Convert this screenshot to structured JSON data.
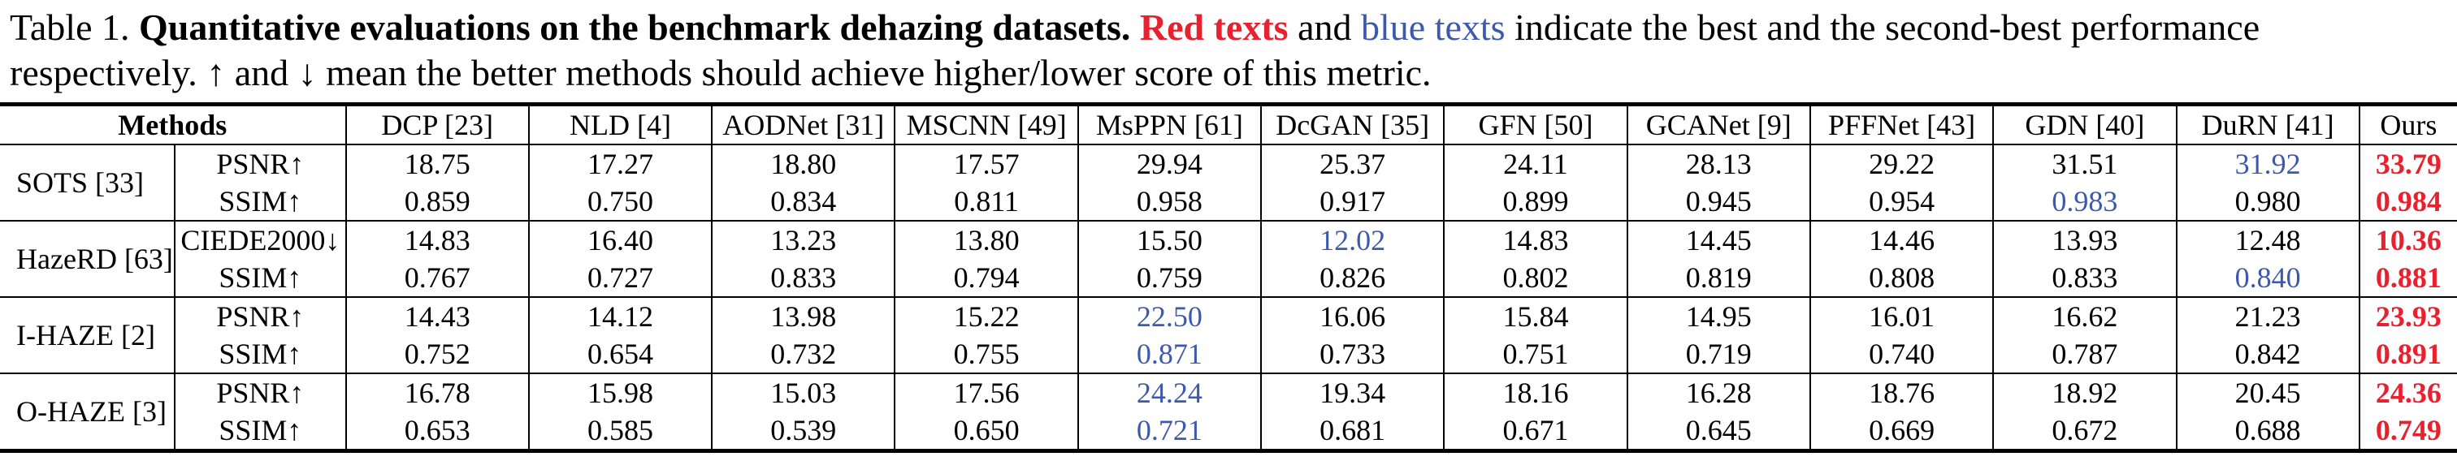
{
  "colors": {
    "best": "#e8212e",
    "second": "#3d59ab"
  },
  "caption": {
    "segments": [
      {
        "text": "Table 1.  ",
        "style": "normal"
      },
      {
        "text": "Quantitative evaluations on the benchmark dehazing datasets. ",
        "style": "bold"
      },
      {
        "text": "Red texts",
        "style": "bold-red"
      },
      {
        "text": " and ",
        "style": "normal"
      },
      {
        "text": "blue texts",
        "style": "blue"
      },
      {
        "text": " indicate the best and the second-best performance respectively. ↑ and ↓ mean the better methods should achieve higher/lower score of this metric.",
        "style": "normal"
      }
    ]
  },
  "table": {
    "corner_label": "Methods",
    "columns": [
      "DCP [23]",
      "NLD [4]",
      "AODNet [31]",
      "MSCNN [49]",
      "MsPPN [61]",
      "DcGAN [35]",
      "GFN [50]",
      "GCANet [9]",
      "PFFNet [43]",
      "GDN [40]",
      "DuRN [41]",
      "Ours"
    ],
    "groups": [
      {
        "dataset": "SOTS [33]",
        "rows": [
          {
            "metric": "PSNR↑",
            "values": [
              "18.75",
              "17.27",
              "18.80",
              "17.57",
              "29.94",
              "25.37",
              "24.11",
              "28.13",
              "29.22",
              "31.51",
              "31.92",
              "33.79"
            ],
            "styles": [
              "",
              "",
              "",
              "",
              "",
              "",
              "",
              "",
              "",
              "",
              "second",
              "best"
            ]
          },
          {
            "metric": "SSIM↑",
            "values": [
              "0.859",
              "0.750",
              "0.834",
              "0.811",
              "0.958",
              "0.917",
              "0.899",
              "0.945",
              "0.954",
              "0.983",
              "0.980",
              "0.984"
            ],
            "styles": [
              "",
              "",
              "",
              "",
              "",
              "",
              "",
              "",
              "",
              "second",
              "",
              "best"
            ]
          }
        ]
      },
      {
        "dataset": "HazeRD [63]",
        "rows": [
          {
            "metric": "CIEDE2000↓",
            "values": [
              "14.83",
              "16.40",
              "13.23",
              "13.80",
              "15.50",
              "12.02",
              "14.83",
              "14.45",
              "14.46",
              "13.93",
              "12.48",
              "10.36"
            ],
            "styles": [
              "",
              "",
              "",
              "",
              "",
              "second",
              "",
              "",
              "",
              "",
              "",
              "best"
            ]
          },
          {
            "metric": "SSIM↑",
            "values": [
              "0.767",
              "0.727",
              "0.833",
              "0.794",
              "0.759",
              "0.826",
              "0.802",
              "0.819",
              "0.808",
              "0.833",
              "0.840",
              "0.881"
            ],
            "styles": [
              "",
              "",
              "",
              "",
              "",
              "",
              "",
              "",
              "",
              "",
              "second",
              "best"
            ]
          }
        ]
      },
      {
        "dataset": "I-HAZE [2]",
        "rows": [
          {
            "metric": "PSNR↑",
            "values": [
              "14.43",
              "14.12",
              "13.98",
              "15.22",
              "22.50",
              "16.06",
              "15.84",
              "14.95",
              "16.01",
              "16.62",
              "21.23",
              "23.93"
            ],
            "styles": [
              "",
              "",
              "",
              "",
              "second",
              "",
              "",
              "",
              "",
              "",
              "",
              "best"
            ]
          },
          {
            "metric": "SSIM↑",
            "values": [
              "0.752",
              "0.654",
              "0.732",
              "0.755",
              "0.871",
              "0.733",
              "0.751",
              "0.719",
              "0.740",
              "0.787",
              "0.842",
              "0.891"
            ],
            "styles": [
              "",
              "",
              "",
              "",
              "second",
              "",
              "",
              "",
              "",
              "",
              "",
              "best"
            ]
          }
        ]
      },
      {
        "dataset": "O-HAZE [3]",
        "rows": [
          {
            "metric": "PSNR↑",
            "values": [
              "16.78",
              "15.98",
              "15.03",
              "17.56",
              "24.24",
              "19.34",
              "18.16",
              "16.28",
              "18.76",
              "18.92",
              "20.45",
              "24.36"
            ],
            "styles": [
              "",
              "",
              "",
              "",
              "second",
              "",
              "",
              "",
              "",
              "",
              "",
              "best"
            ]
          },
          {
            "metric": "SSIM↑",
            "values": [
              "0.653",
              "0.585",
              "0.539",
              "0.650",
              "0.721",
              "0.681",
              "0.671",
              "0.645",
              "0.669",
              "0.672",
              "0.688",
              "0.749"
            ],
            "styles": [
              "",
              "",
              "",
              "",
              "second",
              "",
              "",
              "",
              "",
              "",
              "",
              "best"
            ]
          }
        ]
      }
    ]
  }
}
